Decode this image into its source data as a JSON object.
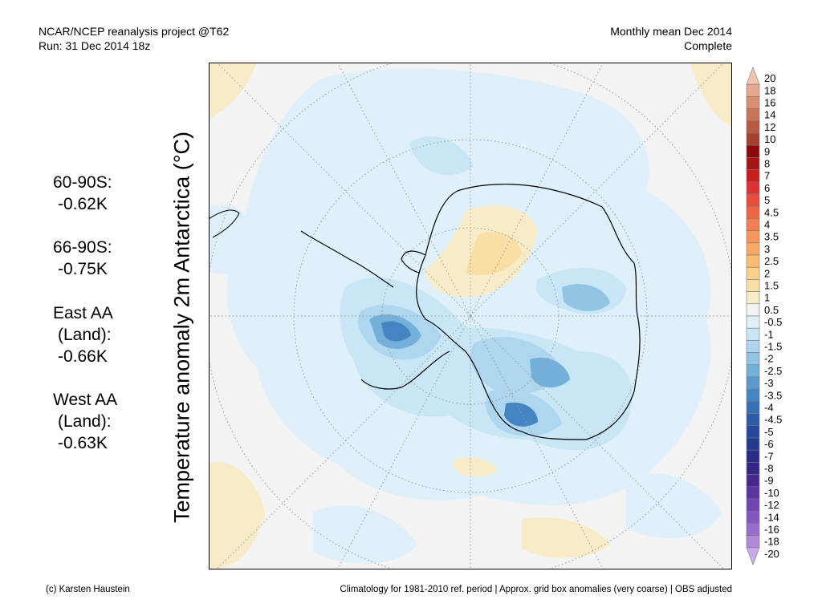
{
  "header": {
    "project": "NCAR/NCEP reanalysis project @T62",
    "run": "Run: 31 Dec 2014 18z",
    "period": "Monthly mean Dec 2014",
    "status": "Complete"
  },
  "axis_title": "Temperature anomaly 2m Antarctica (°C)",
  "stats": [
    {
      "label": "60-90S:",
      "value": "-0.62K"
    },
    {
      "label": "66-90S:",
      "value": "-0.75K"
    },
    {
      "label": "East AA",
      "sub": "(Land):",
      "value": "-0.66K"
    },
    {
      "label": "West AA",
      "sub": "(Land):",
      "value": "-0.63K"
    }
  ],
  "colorbar": {
    "labels": [
      "20",
      "18",
      "16",
      "14",
      "12",
      "10",
      "9",
      "8",
      "7",
      "6",
      "5",
      "4.5",
      "4",
      "3.5",
      "3",
      "2.5",
      "2",
      "1.5",
      "1",
      "0.5",
      "-0.5",
      "-1",
      "-1.5",
      "-2",
      "-2.5",
      "-3",
      "-3.5",
      "-4",
      "-4.5",
      "-5",
      "-6",
      "-7",
      "-8",
      "-9",
      "-10",
      "-12",
      "-14",
      "-16",
      "-18",
      "-20"
    ],
    "colors": [
      "#f4c4ac",
      "#e8a88c",
      "#d98e70",
      "#c97458",
      "#b85a42",
      "#a3402e",
      "#8c0a0a",
      "#a81414",
      "#c81e1e",
      "#dc3232",
      "#ea4b3c",
      "#f06446",
      "#f57d4f",
      "#f8955a",
      "#f9a964",
      "#fabd72",
      "#fad08a",
      "#f9dfa6",
      "#f8ebc8",
      "#f3f3f3",
      "#dff0fa",
      "#c8e6f6",
      "#aed6ee",
      "#92c4e4",
      "#74b0da",
      "#5a9acf",
      "#4584c2",
      "#3670b5",
      "#2c5ca8",
      "#26489a",
      "#243a8c",
      "#2a2c86",
      "#362486",
      "#48288e",
      "#5c34a0",
      "#7044b2",
      "#8456c2",
      "#9a6cd0",
      "#b088dc",
      "#c8aaea"
    ]
  },
  "footer": {
    "credit": "(c) Karsten Haustein",
    "note": "Climatology for 1981-2010 ref. period | Approx. grid box anomalies (very coarse) | OBS adjusted"
  }
}
